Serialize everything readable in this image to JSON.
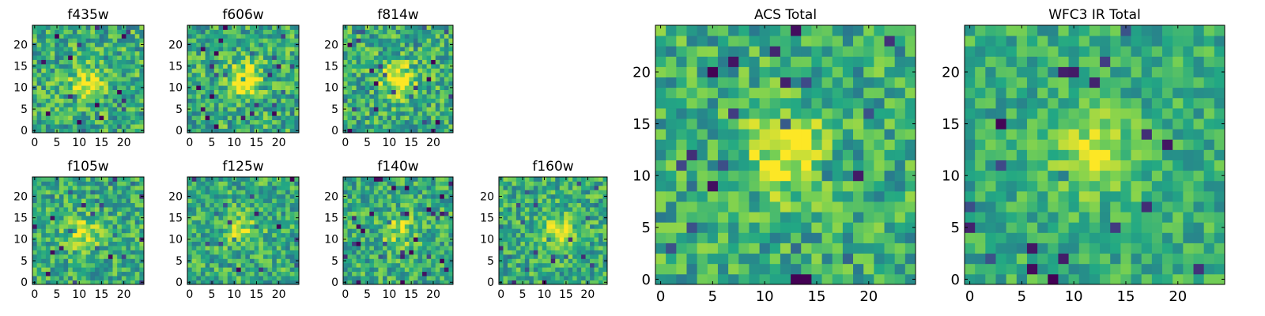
{
  "figure": {
    "colormap": "viridis",
    "colormap_stops": [
      "#440154",
      "#414487",
      "#2a788e",
      "#22a884",
      "#7ad151",
      "#fde725"
    ]
  },
  "chart_data": [
    {
      "type": "heatmap",
      "title": "f435w",
      "grid_size": 25,
      "seed": 11,
      "xticks": [
        "0",
        "5",
        "10",
        "15",
        "20"
      ],
      "yticks": [
        "0",
        "5",
        "10",
        "15",
        "20"
      ],
      "blob_center": [
        12,
        11
      ],
      "blob_strength": 0.35,
      "noise": 0.5,
      "grid": false
    },
    {
      "type": "heatmap",
      "title": "f606w",
      "grid_size": 25,
      "seed": 23,
      "xticks": [
        "0",
        "5",
        "10",
        "15",
        "20"
      ],
      "yticks": [
        "0",
        "5",
        "10",
        "15",
        "20"
      ],
      "blob_center": [
        12,
        12
      ],
      "blob_strength": 0.45,
      "noise": 0.5,
      "grid": false
    },
    {
      "type": "heatmap",
      "title": "f814w",
      "grid_size": 25,
      "seed": 37,
      "xticks": [
        "0",
        "5",
        "10",
        "15",
        "20"
      ],
      "yticks": [
        "0",
        "5",
        "10",
        "15",
        "20"
      ],
      "blob_center": [
        12,
        12
      ],
      "blob_strength": 0.45,
      "noise": 0.5,
      "grid": false
    },
    {
      "type": "heatmap",
      "title": "f105w",
      "grid_size": 25,
      "seed": 41,
      "xticks": [
        "0",
        "5",
        "10",
        "15",
        "20"
      ],
      "yticks": [
        "0",
        "5",
        "10",
        "15",
        "20"
      ],
      "blob_center": [
        11,
        11
      ],
      "blob_strength": 0.3,
      "noise": 0.45,
      "grid": false
    },
    {
      "type": "heatmap",
      "title": "f125w",
      "grid_size": 25,
      "seed": 53,
      "xticks": [
        "0",
        "5",
        "10",
        "15",
        "20"
      ],
      "yticks": [
        "0",
        "5",
        "10",
        "15",
        "20"
      ],
      "blob_center": [
        12,
        12
      ],
      "blob_strength": 0.25,
      "noise": 0.45,
      "grid": false
    },
    {
      "type": "heatmap",
      "title": "f140w",
      "grid_size": 25,
      "seed": 67,
      "xticks": [
        "0",
        "5",
        "10",
        "15",
        "20"
      ],
      "yticks": [
        "0",
        "5",
        "10",
        "15",
        "20"
      ],
      "blob_center": [
        12,
        12
      ],
      "blob_strength": 0.25,
      "noise": 0.45,
      "grid": false
    },
    {
      "type": "heatmap",
      "title": "f160w",
      "grid_size": 25,
      "seed": 79,
      "xticks": [
        "0",
        "5",
        "10",
        "15",
        "20"
      ],
      "yticks": [
        "0",
        "5",
        "10",
        "15",
        "20"
      ],
      "blob_center": [
        13,
        12
      ],
      "blob_strength": 0.35,
      "noise": 0.45,
      "grid": false
    },
    {
      "type": "heatmap",
      "title": "ACS Total",
      "grid_size": 25,
      "seed": 97,
      "xticks": [
        "0",
        "5",
        "10",
        "15",
        "20"
      ],
      "yticks": [
        "0",
        "5",
        "10",
        "15",
        "20"
      ],
      "blob_center": [
        12,
        12
      ],
      "blob_strength": 0.4,
      "noise": 0.45,
      "grid": false
    },
    {
      "type": "heatmap",
      "title": "WFC3 IR Total",
      "grid_size": 25,
      "seed": 113,
      "xticks": [
        "0",
        "5",
        "10",
        "15",
        "20"
      ],
      "yticks": [
        "0",
        "5",
        "10",
        "15",
        "20"
      ],
      "blob_center": [
        12,
        12
      ],
      "blob_strength": 0.35,
      "noise": 0.35,
      "grid": false
    }
  ]
}
